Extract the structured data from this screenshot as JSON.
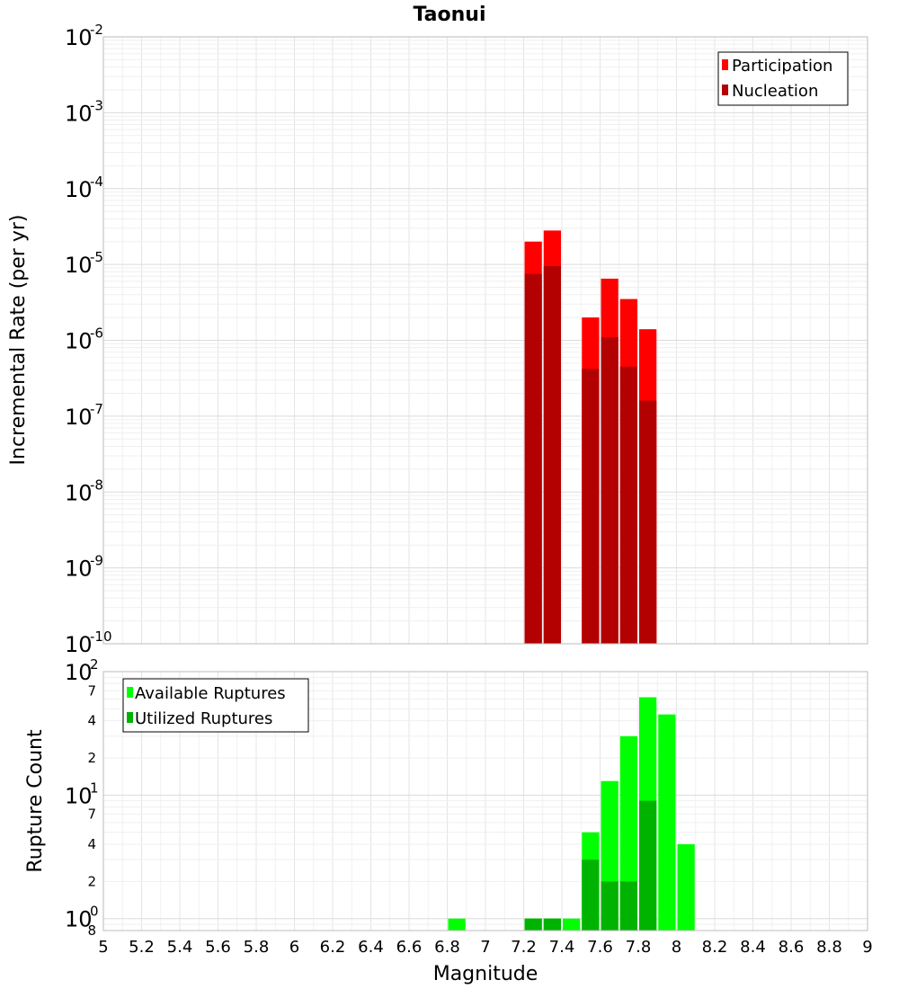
{
  "chart_data": [
    {
      "type": "bar",
      "title": "Taonui",
      "xlabel": "Magnitude",
      "ylabel": "Incremental Rate (per yr)",
      "xlim": [
        5,
        9
      ],
      "yscale": "log",
      "ylim": [
        1e-10,
        0.01
      ],
      "y_tick_base": "10",
      "y_tick_exponents": [
        "-10",
        "-9",
        "-8",
        "-7",
        "-6",
        "-5",
        "-4",
        "-3",
        "-2"
      ],
      "legend_position": "top-right",
      "bin_width": 0.1,
      "series": [
        {
          "name": "Participation",
          "color": "#ff0000",
          "points": [
            {
              "x": 7.25,
              "y": 2e-05
            },
            {
              "x": 7.35,
              "y": 2.8e-05
            },
            {
              "x": 7.55,
              "y": 2e-06
            },
            {
              "x": 7.65,
              "y": 6.5e-06
            },
            {
              "x": 7.75,
              "y": 3.5e-06
            },
            {
              "x": 7.85,
              "y": 1.4e-06
            }
          ]
        },
        {
          "name": "Nucleation",
          "color": "#b30000",
          "points": [
            {
              "x": 7.25,
              "y": 7.5e-06
            },
            {
              "x": 7.35,
              "y": 9.5e-06
            },
            {
              "x": 7.55,
              "y": 4.2e-07
            },
            {
              "x": 7.65,
              "y": 1.1e-06
            },
            {
              "x": 7.75,
              "y": 4.5e-07
            },
            {
              "x": 7.85,
              "y": 1.6e-07
            }
          ]
        }
      ]
    },
    {
      "type": "bar",
      "xlabel": "Magnitude",
      "ylabel": "Rupture Count",
      "xlim": [
        5,
        9
      ],
      "x_ticks": [
        "5",
        "5.2",
        "5.4",
        "5.6",
        "5.8",
        "6",
        "6.2",
        "6.4",
        "6.6",
        "6.8",
        "7",
        "7.2",
        "7.4",
        "7.6",
        "7.8",
        "8",
        "8.2",
        "8.4",
        "8.6",
        "8.8",
        "9"
      ],
      "yscale": "log",
      "ylim": [
        0.8,
        100
      ],
      "y_tick_base": "10",
      "y_major_ticks": [
        {
          "value": 1,
          "exp": "0"
        },
        {
          "value": 10,
          "exp": "1"
        },
        {
          "value": 100,
          "exp": "2"
        }
      ],
      "y_minor_ticks": [
        {
          "value": 0.8,
          "label": "8"
        },
        {
          "value": 2,
          "label": "2"
        },
        {
          "value": 4,
          "label": "4"
        },
        {
          "value": 7,
          "label": "7"
        },
        {
          "value": 20,
          "label": "2"
        },
        {
          "value": 40,
          "label": "4"
        },
        {
          "value": 70,
          "label": "7"
        }
      ],
      "legend_position": "top-left",
      "bin_width": 0.1,
      "series": [
        {
          "name": "Available Ruptures",
          "color": "#00ff00",
          "points": [
            {
              "x": 6.85,
              "y": 1
            },
            {
              "x": 7.25,
              "y": 1
            },
            {
              "x": 7.35,
              "y": 1
            },
            {
              "x": 7.45,
              "y": 1
            },
            {
              "x": 7.55,
              "y": 5
            },
            {
              "x": 7.65,
              "y": 13
            },
            {
              "x": 7.75,
              "y": 30
            },
            {
              "x": 7.85,
              "y": 62
            },
            {
              "x": 7.95,
              "y": 45
            },
            {
              "x": 8.05,
              "y": 4
            }
          ]
        },
        {
          "name": "Utilized Ruptures",
          "color": "#00b300",
          "points": [
            {
              "x": 7.25,
              "y": 1
            },
            {
              "x": 7.35,
              "y": 1
            },
            {
              "x": 7.55,
              "y": 3
            },
            {
              "x": 7.65,
              "y": 2
            },
            {
              "x": 7.75,
              "y": 2
            },
            {
              "x": 7.85,
              "y": 9
            }
          ]
        }
      ]
    }
  ]
}
